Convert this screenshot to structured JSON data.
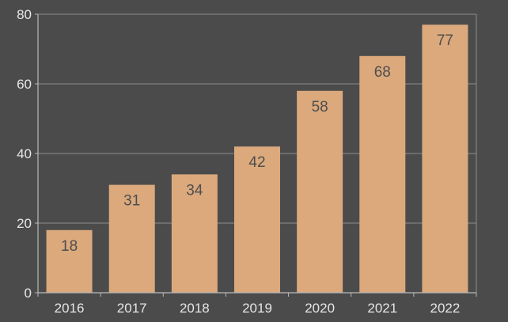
{
  "chart_data": {
    "type": "bar",
    "categories": [
      "2016",
      "2017",
      "2018",
      "2019",
      "2020",
      "2021",
      "2022"
    ],
    "values": [
      18,
      31,
      34,
      42,
      58,
      68,
      77
    ],
    "data_labels": [
      "18",
      "31",
      "34",
      "42",
      "58",
      "68",
      "77"
    ],
    "title": "",
    "xlabel": "",
    "ylabel": "",
    "ylim": [
      0,
      80
    ],
    "yticks": [
      0,
      20,
      40,
      60,
      80
    ],
    "ytick_labels": [
      "0",
      "20",
      "40",
      "60",
      "80"
    ],
    "grid": true,
    "legend": "none",
    "colors": {
      "background": "#4b4b4b",
      "bar": "#dba97c",
      "grid": "#8d8d8d",
      "axis": "#b9b9b9",
      "tick_text": "#e6e6e6",
      "data_label_text": "#4e4e4e"
    }
  }
}
